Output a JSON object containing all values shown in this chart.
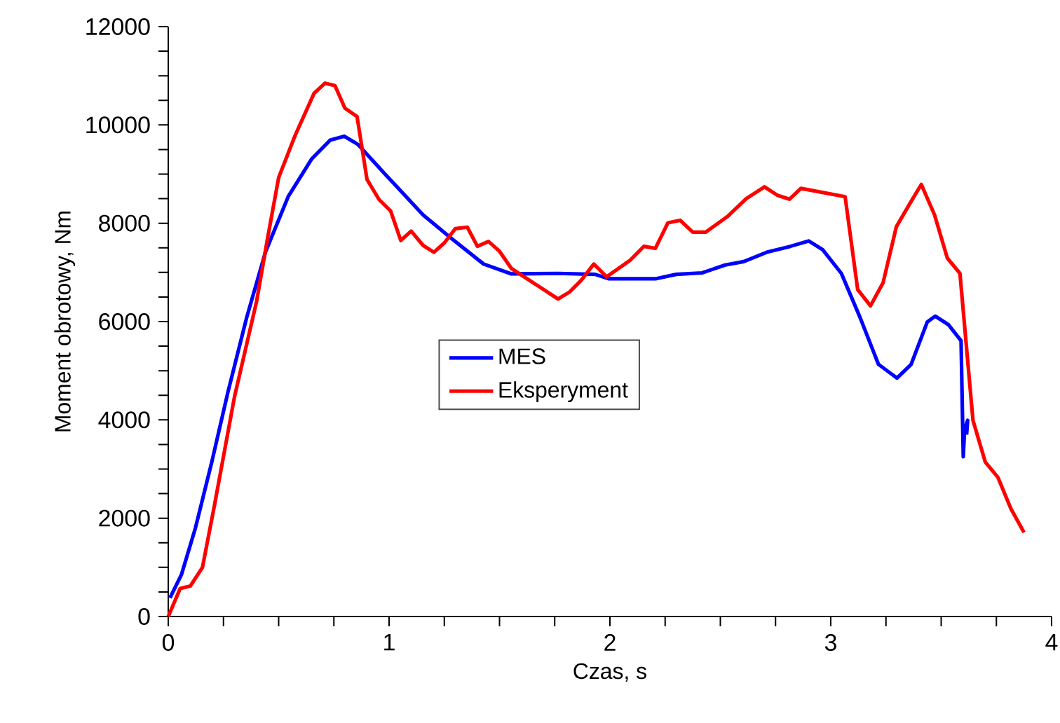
{
  "chart_data": {
    "type": "line",
    "xlabel": "Czas, s",
    "ylabel": "Moment obrotowy, Nm",
    "xlim": [
      0,
      4
    ],
    "ylim": [
      0,
      12000
    ],
    "xticks": [
      0,
      1,
      2,
      3,
      4
    ],
    "yticks": [
      0,
      2000,
      4000,
      6000,
      8000,
      10000,
      12000
    ],
    "grid": false,
    "legend": "center",
    "marker": "none",
    "line_style": "solid",
    "series": [
      {
        "name": "MES",
        "color": "#0000ff",
        "x": [
          0.008,
          0.06,
          0.123,
          0.197,
          0.27,
          0.355,
          0.44,
          0.544,
          0.65,
          0.733,
          0.797,
          0.86,
          0.986,
          1.154,
          1.28,
          1.428,
          1.554,
          1.765,
          1.933,
          1.996,
          2.206,
          2.3,
          2.417,
          2.522,
          2.606,
          2.71,
          2.817,
          2.9,
          2.964,
          3.048,
          3.133,
          3.216,
          3.3,
          3.364,
          3.437,
          3.473,
          3.532,
          3.59,
          3.6,
          3.606,
          3.62,
          3.615
        ],
        "values": [
          380,
          855,
          1800,
          3140,
          4560,
          6080,
          7410,
          8550,
          9310,
          9690,
          9770,
          9600,
          8980,
          8170,
          7700,
          7170,
          6970,
          6980,
          6960,
          6870,
          6870,
          6960,
          6990,
          7150,
          7220,
          7410,
          7530,
          7640,
          7460,
          6980,
          6080,
          5130,
          4850,
          5130,
          5990,
          6110,
          5940,
          5610,
          3250,
          3800,
          3990,
          3700
        ]
      },
      {
        "name": "Eksperyment",
        "color": "#ff0000",
        "x": [
          0,
          0.054,
          0.1,
          0.155,
          0.21,
          0.3,
          0.4,
          0.45,
          0.5,
          0.575,
          0.66,
          0.71,
          0.755,
          0.8,
          0.855,
          0.9,
          0.955,
          1.007,
          1.053,
          1.1,
          1.154,
          1.203,
          1.25,
          1.3,
          1.354,
          1.4,
          1.45,
          1.5,
          1.554,
          1.765,
          1.817,
          1.87,
          1.927,
          1.985,
          2.09,
          2.154,
          2.206,
          2.263,
          2.318,
          2.375,
          2.434,
          2.533,
          2.617,
          2.7,
          2.758,
          2.813,
          2.865,
          3.065,
          3.122,
          3.18,
          3.237,
          3.297,
          3.353,
          3.41,
          3.47,
          3.528,
          3.585,
          3.644,
          3.7,
          3.757,
          3.816,
          3.875
        ],
        "values": [
          0,
          570,
          620,
          1000,
          2280,
          4470,
          6410,
          7700,
          8930,
          9790,
          10640,
          10850,
          10800,
          10340,
          10170,
          8890,
          8480,
          8250,
          7650,
          7840,
          7550,
          7410,
          7600,
          7890,
          7920,
          7530,
          7630,
          7430,
          7080,
          6460,
          6600,
          6840,
          7170,
          6910,
          7240,
          7530,
          7490,
          8010,
          8060,
          7820,
          7820,
          8140,
          8500,
          8740,
          8570,
          8490,
          8710,
          8540,
          6650,
          6320,
          6790,
          7930,
          8360,
          8790,
          8170,
          7290,
          6980,
          3990,
          3140,
          2830,
          2190,
          1710
        ]
      }
    ]
  }
}
